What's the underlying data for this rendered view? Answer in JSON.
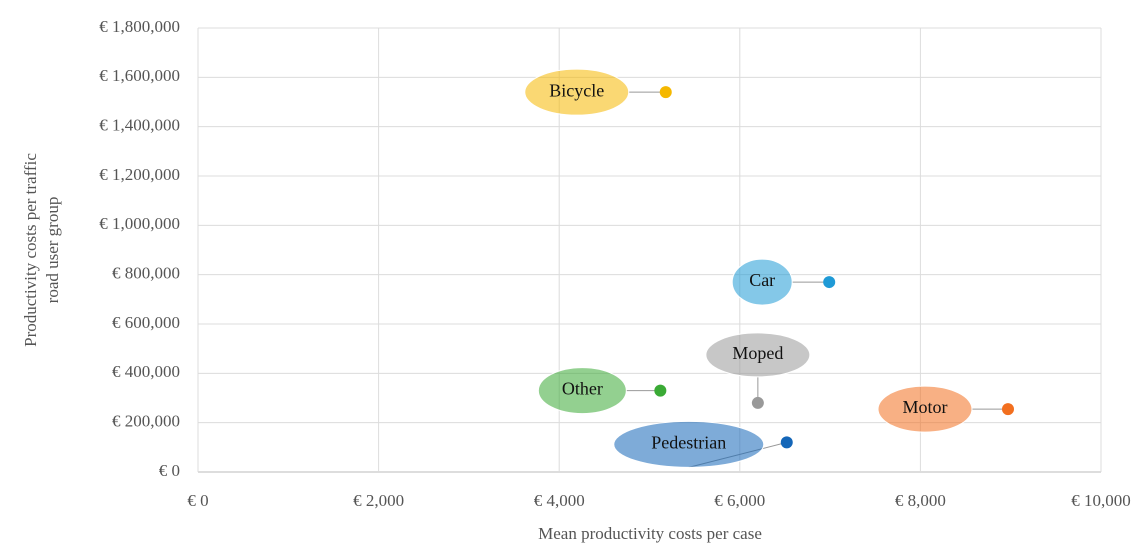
{
  "chart_data": {
    "type": "scatter",
    "xlabel": "Mean productivity costs per case",
    "ylabel": [
      "Productivity costs per traffic",
      "road user group"
    ],
    "series": [
      {
        "name": "Bicycle",
        "color": "#f5b800",
        "x": [
          5180
        ],
        "values": [
          1540000
        ]
      },
      {
        "name": "Car",
        "color": "#1f9ad6",
        "x": [
          6990
        ],
        "values": [
          770000
        ]
      },
      {
        "name": "Moped",
        "color": "#999999",
        "x": [
          6200
        ],
        "values": [
          280000
        ]
      },
      {
        "name": "Other",
        "color": "#3aaa35",
        "x": [
          5120
        ],
        "values": [
          330000
        ]
      },
      {
        "name": "Motor",
        "color": "#f26f1f",
        "x": [
          8970
        ],
        "values": [
          255000
        ]
      },
      {
        "name": "Pedestrian",
        "color": "#1466b8",
        "x": [
          6520
        ],
        "values": [
          120000
        ]
      }
    ],
    "xlim": [
      0,
      10000
    ],
    "xticks": [
      {
        "value": 0,
        "label": "€ 0"
      },
      {
        "value": 2000,
        "label": "€ 2,000"
      },
      {
        "value": 4000,
        "label": "€ 4,000"
      },
      {
        "value": 6000,
        "label": "€ 6,000"
      },
      {
        "value": 8000,
        "label": "€ 8,000"
      },
      {
        "value": 10000,
        "label": "€ 10,000"
      }
    ],
    "ylim": [
      0,
      1800000
    ],
    "yticks": [
      {
        "value": 0,
        "label": "€ 0"
      },
      {
        "value": 200000,
        "label": "€ 200,000"
      },
      {
        "value": 400000,
        "label": "€ 400,000"
      },
      {
        "value": 600000,
        "label": "€ 600,000"
      },
      {
        "value": 800000,
        "label": "€ 800,000"
      },
      {
        "value": 1000000,
        "label": "€ 1,000,000"
      },
      {
        "value": 1200000,
        "label": "€ 1,200,000"
      },
      {
        "value": 1400000,
        "label": "€ 1,400,000"
      },
      {
        "value": 1600000,
        "label": "€ 1,600,000"
      },
      {
        "value": 1800000,
        "label": "€ 1,800,000"
      }
    ],
    "grid": true
  }
}
